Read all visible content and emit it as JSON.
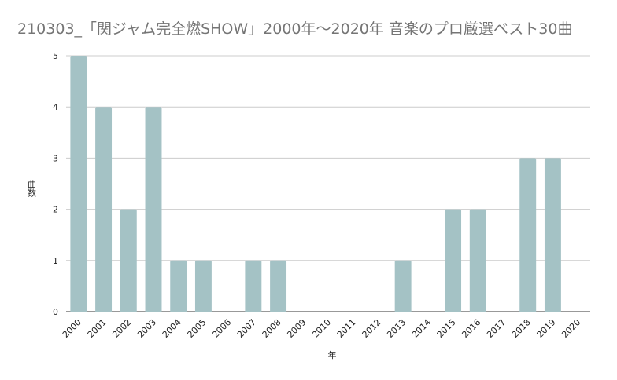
{
  "chart_data": {
    "type": "bar",
    "title": "210303_「関ジャム完全燃SHOW」2000年〜2020年 音楽のプロ厳選ベスト30曲",
    "xlabel": "年",
    "ylabel": "曲数",
    "categories": [
      "2000",
      "2001",
      "2002",
      "2003",
      "2004",
      "2005",
      "2006",
      "2007",
      "2008",
      "2009",
      "2010",
      "2011",
      "2012",
      "2013",
      "2014",
      "2015",
      "2016",
      "2017",
      "2018",
      "2019",
      "2020"
    ],
    "values": [
      5,
      4,
      2,
      4,
      1,
      1,
      0,
      1,
      1,
      0,
      0,
      0,
      0,
      1,
      0,
      2,
      2,
      0,
      3,
      3,
      0
    ],
    "ylim": [
      0,
      5
    ],
    "yticks": [
      "0",
      "1",
      "2",
      "3",
      "4",
      "5"
    ],
    "grid": true,
    "legend": "none",
    "bar_color": "#a4c2c5"
  }
}
